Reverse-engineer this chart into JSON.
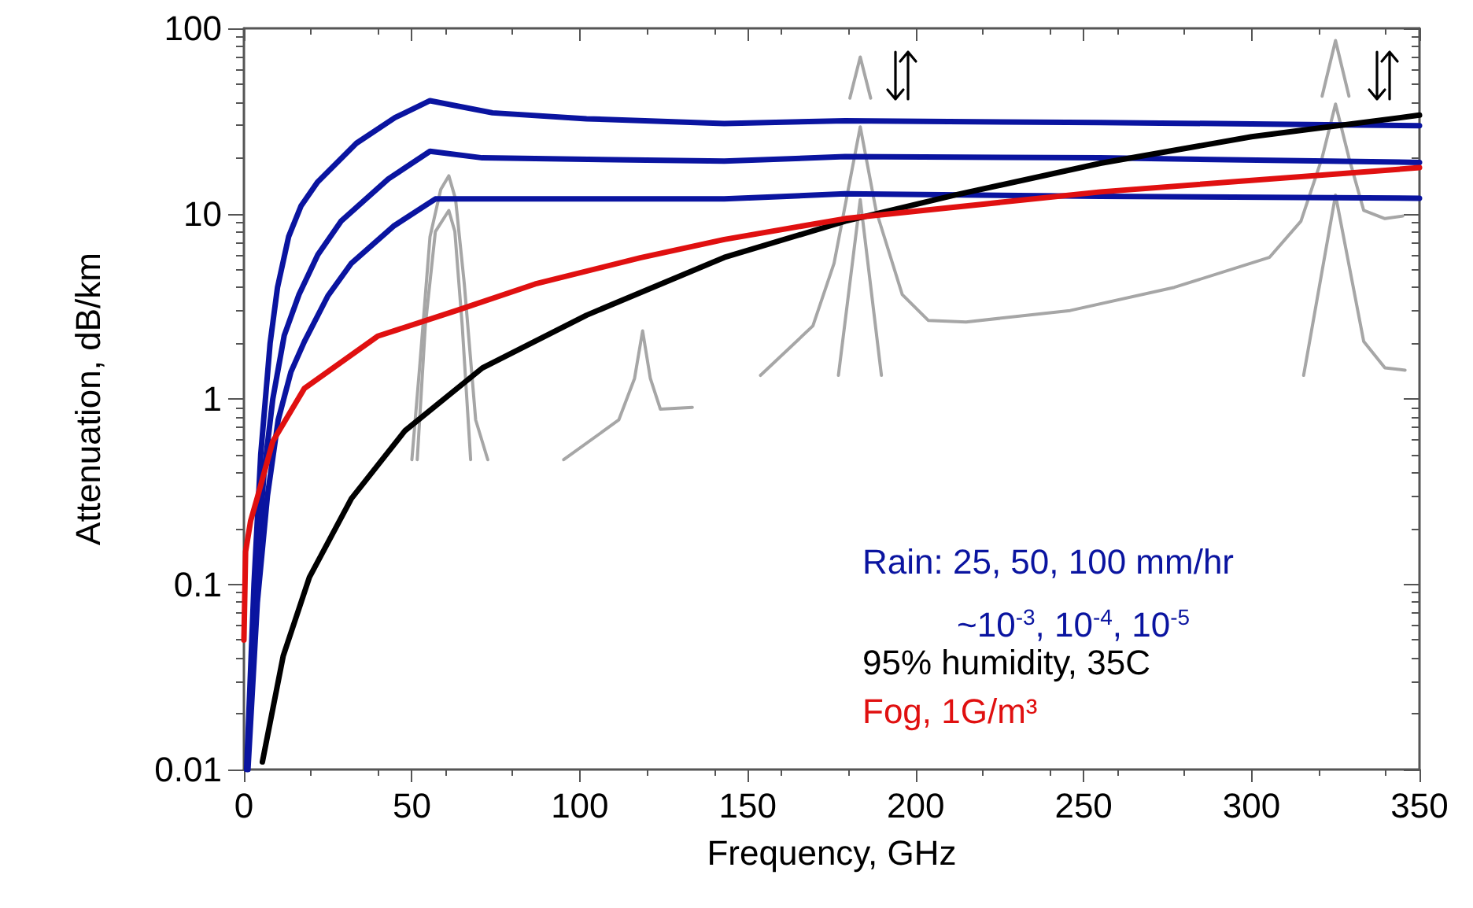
{
  "chart_data": {
    "type": "line",
    "xlabel": "Frequency, GHz",
    "ylabel": "Attenuation, dB/km",
    "log": "y",
    "grid": false,
    "legend": "bottom right",
    "marker": "none",
    "line_style": "solid",
    "xlim": [
      0,
      350
    ],
    "xticks": [
      0,
      50,
      100,
      150,
      200,
      250,
      300,
      350
    ],
    "ylim": [
      0.01,
      100
    ],
    "yticks": [
      0.01,
      0.1,
      1,
      10,
      100
    ],
    "annotations": [
      "~10$^{-3}$, 10$^{-4}$, 10$^{-5}$"
    ],
    "series": [
      {
        "color": "#a6a6a6",
        "x": [
          50,
          52.3,
          55.4,
          58.6,
          61,
          63,
          65.6,
          69,
          72.6
        ],
        "values": [
          0.47,
          1.47,
          7.5,
          13.5,
          16,
          12,
          4.2,
          0.77,
          0.47
        ]
      },
      {
        "color": "#a6a6a6",
        "x": [
          51.6,
          54,
          57,
          61,
          62.8,
          65,
          67.5
        ],
        "values": [
          0.47,
          2.48,
          8,
          10.4,
          8,
          2.48,
          0.47
        ]
      },
      {
        "color": "#a6a6a6",
        "x": [
          95.2,
          111.6,
          116.3,
          118.7,
          121,
          124,
          133.5
        ],
        "values": [
          0.47,
          0.77,
          1.29,
          2.33,
          1.29,
          0.88,
          0.9
        ]
      },
      {
        "color": "#a6a6a6",
        "x": [
          153.8,
          169.4,
          175.7,
          183.5,
          188.2,
          196,
          203.8,
          215,
          246,
          277,
          305.3,
          314.7,
          321,
          325,
          329,
          333.4,
          339.7,
          345
        ],
        "values": [
          1.34,
          2.48,
          5.4,
          29.4,
          10.4,
          3.66,
          2.65,
          2.6,
          3,
          4,
          5.8,
          9.1,
          20,
          39,
          20,
          10.4,
          9.4,
          9.7
        ]
      },
      {
        "color": "#a6a6a6",
        "x": [
          177,
          183.5,
          189.8
        ],
        "values": [
          1.34,
          11.9,
          1.34
        ]
      },
      {
        "color": "#a6a6a6",
        "x": [
          180.4,
          183.5,
          186.6
        ],
        "values": [
          42,
          70,
          42
        ]
      },
      {
        "color": "#a6a6a6",
        "x": [
          321,
          325,
          329
        ],
        "values": [
          43,
          86,
          43
        ]
      },
      {
        "color": "#a6a6a6",
        "x": [
          315.5,
          325,
          333.4,
          339.7,
          345.7
        ],
        "values": [
          1.34,
          12.6,
          2.04,
          1.47,
          1.43
        ]
      },
      {
        "name": "Rain: 25, 50, 100 mm/hr",
        "color": "#0a14a0",
        "x": [
          0.8,
          3,
          5,
          7.8,
          10,
          13.3,
          17,
          21.9,
          33.5,
          45,
          55.4,
          74,
          102,
          143,
          179,
          255,
          300,
          350
        ],
        "values": [
          0.01,
          0.1,
          0.5,
          2,
          4,
          7.5,
          11,
          14.8,
          24,
          33,
          40.7,
          35,
          32.5,
          30.6,
          31.7,
          31,
          30.5,
          29.8
        ]
      },
      {
        "color": "#0a14a0",
        "x": [
          1,
          3.5,
          6,
          8.6,
          12,
          16.4,
          22,
          28.9,
          43,
          55.4,
          71,
          143,
          179,
          255,
          350
        ],
        "values": [
          0.01,
          0.1,
          0.4,
          1,
          2.2,
          3.66,
          6,
          9.1,
          15.4,
          21.7,
          20,
          19.2,
          20.3,
          20,
          18.9
        ]
      },
      {
        "color": "#0a14a0",
        "x": [
          1.2,
          4,
          7,
          10.2,
          14,
          18,
          25,
          32,
          44.5,
          57,
          143,
          179,
          255,
          350
        ],
        "values": [
          0.01,
          0.08,
          0.3,
          0.77,
          1.4,
          2.04,
          3.6,
          5.4,
          8.55,
          12,
          12,
          12.8,
          12.4,
          12.1
        ]
      },
      {
        "name": "95% humidity, 35C",
        "color": "#000000",
        "x": [
          5.5,
          11.7,
          19.5,
          32,
          48,
          71,
          102,
          143,
          179,
          211.7,
          255,
          300,
          350
        ],
        "values": [
          0.011,
          0.041,
          0.109,
          0.29,
          0.675,
          1.47,
          2.83,
          5.8,
          9.1,
          12.6,
          18.7,
          26,
          34
        ]
      },
      {
        "name": "Fog, 1G/m³",
        "color": "#e01010",
        "x": [
          0,
          0.5,
          2,
          3.9,
          8.6,
          18,
          39.8,
          63.3,
          86.7,
          118,
          143,
          179,
          255,
          350
        ],
        "values": [
          0.05,
          0.15,
          0.22,
          0.29,
          0.59,
          1.14,
          2.18,
          3,
          4.17,
          5.78,
          7.25,
          9.4,
          13.1,
          17.7
        ]
      }
    ]
  }
}
